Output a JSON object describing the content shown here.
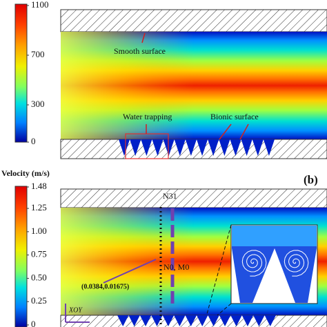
{
  "colorbar_title": "Velocity (m/s)",
  "panels": [
    {
      "colorbar": {
        "ticks": [
          1100,
          700,
          300,
          0
        ]
      },
      "annotations": {
        "smooth": "Smooth surface",
        "trap": "Water trapping",
        "bionic": "Bionic surface"
      }
    },
    {
      "label": "(b)",
      "colorbar": {
        "ticks": [
          {
            "value": 1.48,
            "label": "1.48"
          },
          {
            "value": 1.25,
            "label": "1.25"
          },
          {
            "value": 1,
            "label": "1.00"
          },
          {
            "value": 0.75,
            "label": "0.75"
          },
          {
            "value": 0.5,
            "label": "0.50"
          },
          {
            "value": 0.25,
            "label": "0.25"
          },
          0
        ]
      },
      "annotations": {
        "top_node": "N31",
        "mid_node": "N0, M0",
        "coord": "(0.0384,0.01675)",
        "plane": "XOY"
      }
    }
  ]
}
